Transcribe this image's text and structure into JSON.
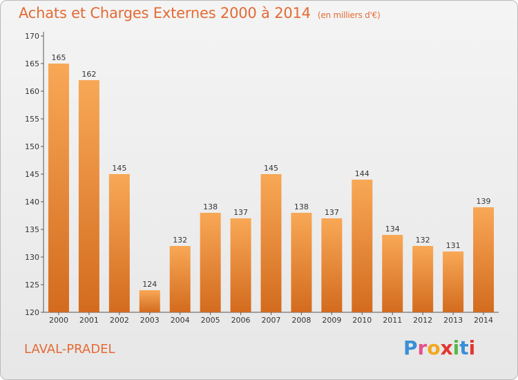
{
  "title": "Achats et Charges Externes 2000 à 2014",
  "subtitle": "(en milliers d'€)",
  "town": "LAVAL-PRADEL",
  "brand": {
    "letters": [
      "P",
      "r",
      "o",
      "x",
      "i",
      "t",
      "i"
    ],
    "colors": [
      "#3a8fd8",
      "#e64f8c",
      "#f2a81d",
      "#e2362f",
      "#58b848",
      "#3a8fd8",
      "#e2362f"
    ]
  },
  "colors": {
    "bar_top": "#f8a856",
    "bar_bottom": "#d36b1e",
    "accent": "#e46a33"
  },
  "chart_data": {
    "type": "bar",
    "title": "Achats et Charges Externes 2000 à 2014",
    "subtitle": "(en milliers d'€)",
    "categories": [
      "2000",
      "2001",
      "2002",
      "2003",
      "2004",
      "2005",
      "2006",
      "2007",
      "2008",
      "2009",
      "2010",
      "2011",
      "2012",
      "2013",
      "2014"
    ],
    "values": [
      165,
      162,
      145,
      124,
      132,
      138,
      137,
      145,
      138,
      137,
      144,
      134,
      132,
      131,
      139
    ],
    "ylim": [
      120,
      170
    ],
    "yticks": [
      120,
      125,
      130,
      135,
      140,
      145,
      150,
      155,
      160,
      165,
      170
    ],
    "grid": false,
    "data_labels": true
  }
}
